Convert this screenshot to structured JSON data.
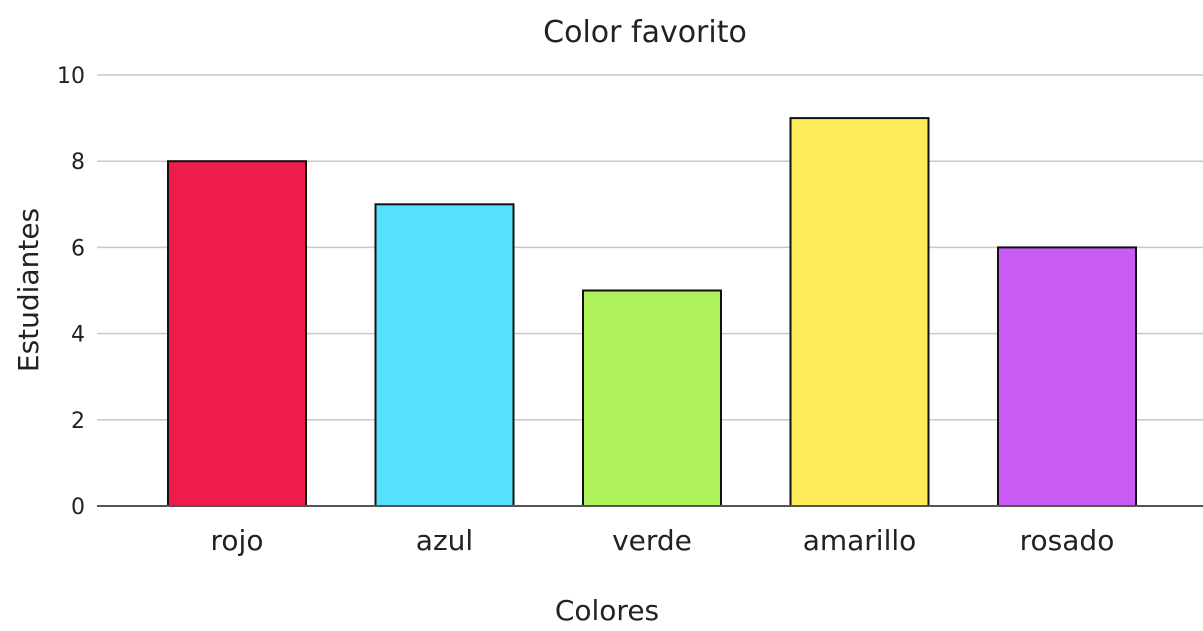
{
  "chart_data": {
    "type": "bar",
    "title": "Color favorito",
    "xlabel": "Colores",
    "ylabel": "Estudiantes",
    "categories": [
      "rojo",
      "azul",
      "verde",
      "amarillo",
      "rosado"
    ],
    "values": [
      8,
      7,
      5,
      9,
      6
    ],
    "colors": [
      "#ee1c4a",
      "#55e0fb",
      "#aef15a",
      "#ffec5c",
      "#c95cf5"
    ],
    "ylim": [
      0,
      10
    ],
    "yticks": [
      "0",
      "2",
      "4",
      "6",
      "8",
      "10"
    ],
    "grid": true,
    "legend": "none"
  }
}
